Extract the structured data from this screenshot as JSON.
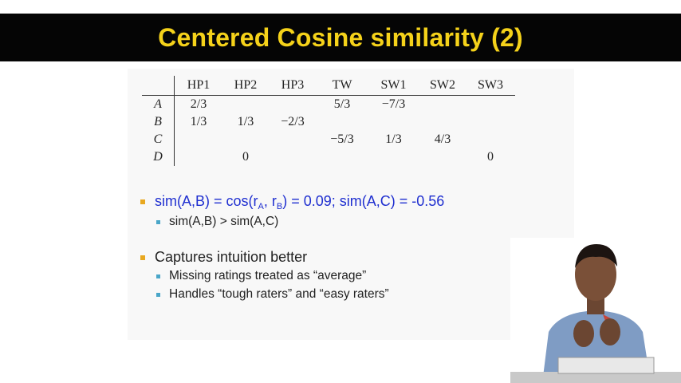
{
  "slide": {
    "title": "Centered Cosine similarity (2)"
  },
  "table": {
    "columns": [
      "HP1",
      "HP2",
      "HP3",
      "TW",
      "SW1",
      "SW2",
      "SW3"
    ],
    "rows": [
      {
        "label": "A",
        "cells": [
          "2/3",
          "",
          "",
          "5/3",
          "−7/3",
          "",
          ""
        ]
      },
      {
        "label": "B",
        "cells": [
          "1/3",
          "1/3",
          "−2/3",
          "",
          "",
          "",
          ""
        ]
      },
      {
        "label": "C",
        "cells": [
          "",
          "",
          "",
          "−5/3",
          "1/3",
          "4/3",
          ""
        ]
      },
      {
        "label": "D",
        "cells": [
          "",
          "0",
          "",
          "",
          "",
          "",
          "0"
        ]
      }
    ]
  },
  "bullets": {
    "b1": {
      "part1": "sim(A,B) = cos(r",
      "sub1": "A",
      "part2": ", r",
      "sub2": "B",
      "part3": ") = 0.09; sim(A,C) = -0.56",
      "sub_item": "sim(A,B) > sim(A,C)"
    },
    "b2": {
      "text": "Captures intuition better",
      "sub_items": [
        "Missing ratings treated as “average”",
        "Handles “tough raters” and “easy raters”"
      ]
    }
  },
  "colors": {
    "title_bar": "#050505",
    "title_text": "#f5d21a",
    "bullet_l1": "#e8a820",
    "bullet_l2": "#4aa6c8",
    "formula_text": "#1f2fd0"
  }
}
